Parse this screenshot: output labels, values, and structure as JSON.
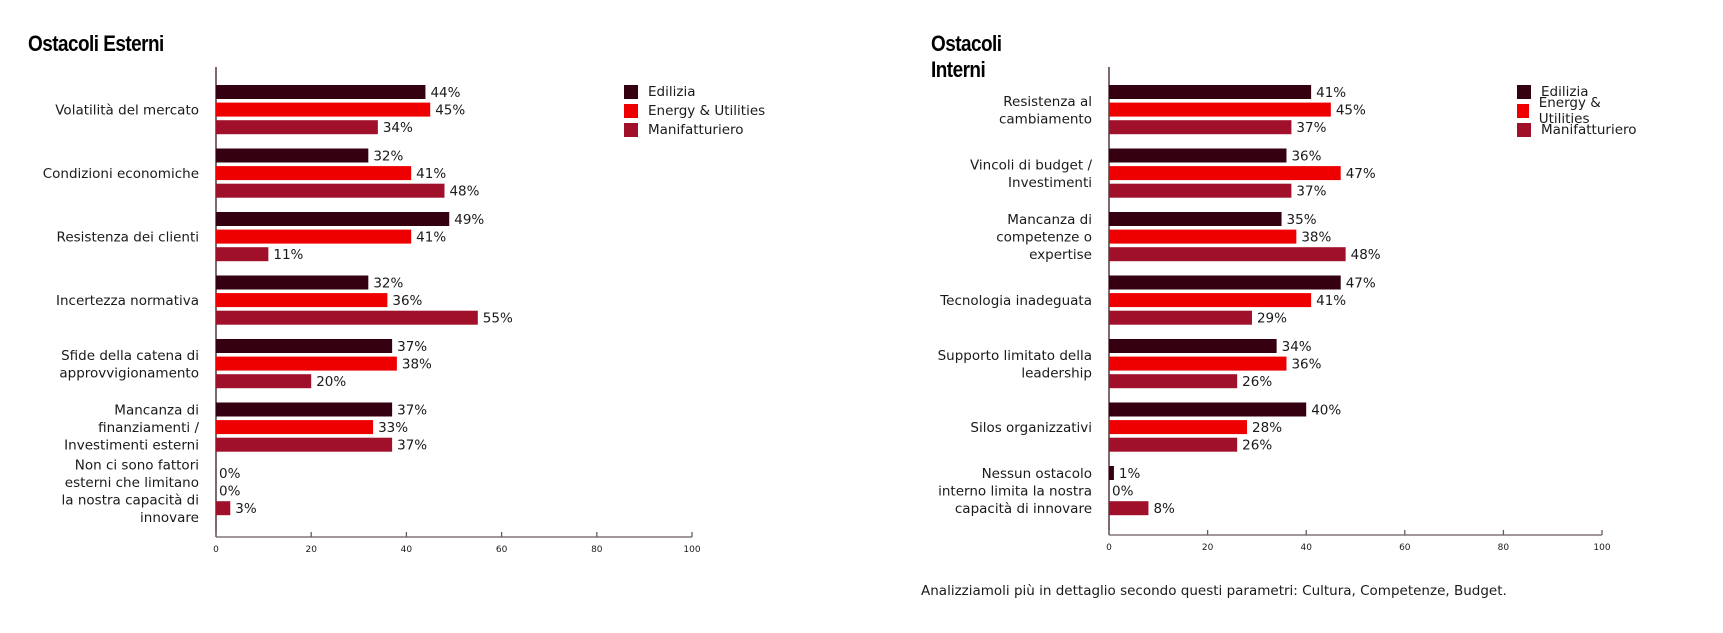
{
  "series_colors": {
    "Edilizia": "#350010",
    "Energy & Utilities": "#EE0000",
    "Manifatturiero": "#A0102A"
  },
  "caption": "Analizziamoli più in dettaglio secondo questi parametri: Cultura, Competenze, Budget.",
  "chart_data": [
    {
      "type": "bar",
      "orientation": "horizontal",
      "title": "Ostacoli Esterni",
      "xlabel": "",
      "ylabel": "",
      "xlim": [
        0,
        100
      ],
      "xticks": [
        0,
        20,
        40,
        60,
        80,
        100
      ],
      "grid": false,
      "legend_position": "top-right",
      "value_suffix": "%",
      "categories": [
        [
          "Volatilità del mercato"
        ],
        [
          "Condizioni economiche"
        ],
        [
          "Resistenza dei clienti"
        ],
        [
          "Incertezza normativa"
        ],
        [
          "Sfide della catena di",
          "approvvigionamento"
        ],
        [
          "Mancanza di",
          "finanziamenti /",
          "Investimenti esterni"
        ],
        [
          "Non ci sono fattori",
          "esterni che limitano",
          "la nostra capacità di",
          "innovare"
        ]
      ],
      "series": [
        {
          "name": "Edilizia",
          "values": [
            44,
            32,
            49,
            32,
            37,
            37,
            0
          ]
        },
        {
          "name": "Energy & Utilities",
          "values": [
            45,
            41,
            41,
            36,
            38,
            33,
            0
          ]
        },
        {
          "name": "Manifatturiero",
          "values": [
            34,
            48,
            11,
            55,
            20,
            37,
            3
          ]
        }
      ]
    },
    {
      "type": "bar",
      "orientation": "horizontal",
      "title": "Ostacoli Interni",
      "xlabel": "",
      "ylabel": "",
      "xlim": [
        0,
        100
      ],
      "xticks": [
        0,
        20,
        40,
        60,
        80,
        100
      ],
      "grid": false,
      "legend_position": "top-right",
      "value_suffix": "%",
      "categories": [
        [
          "Resistenza al",
          "cambiamento"
        ],
        [
          "Vincoli di budget /",
          "Investimenti"
        ],
        [
          "Mancanza di",
          "competenze o",
          "expertise"
        ],
        [
          "Tecnologia inadeguata"
        ],
        [
          "Supporto limitato della",
          "leadership"
        ],
        [
          "Silos organizzativi"
        ],
        [
          "Nessun ostacolo",
          "interno limita la nostra",
          "capacità di innovare"
        ]
      ],
      "series": [
        {
          "name": "Edilizia",
          "values": [
            41,
            36,
            35,
            47,
            34,
            40,
            1
          ]
        },
        {
          "name": "Energy & Utilities",
          "values": [
            45,
            47,
            38,
            41,
            36,
            28,
            0
          ]
        },
        {
          "name": "Manifatturiero",
          "values": [
            37,
            37,
            48,
            29,
            26,
            26,
            8
          ]
        }
      ]
    }
  ]
}
